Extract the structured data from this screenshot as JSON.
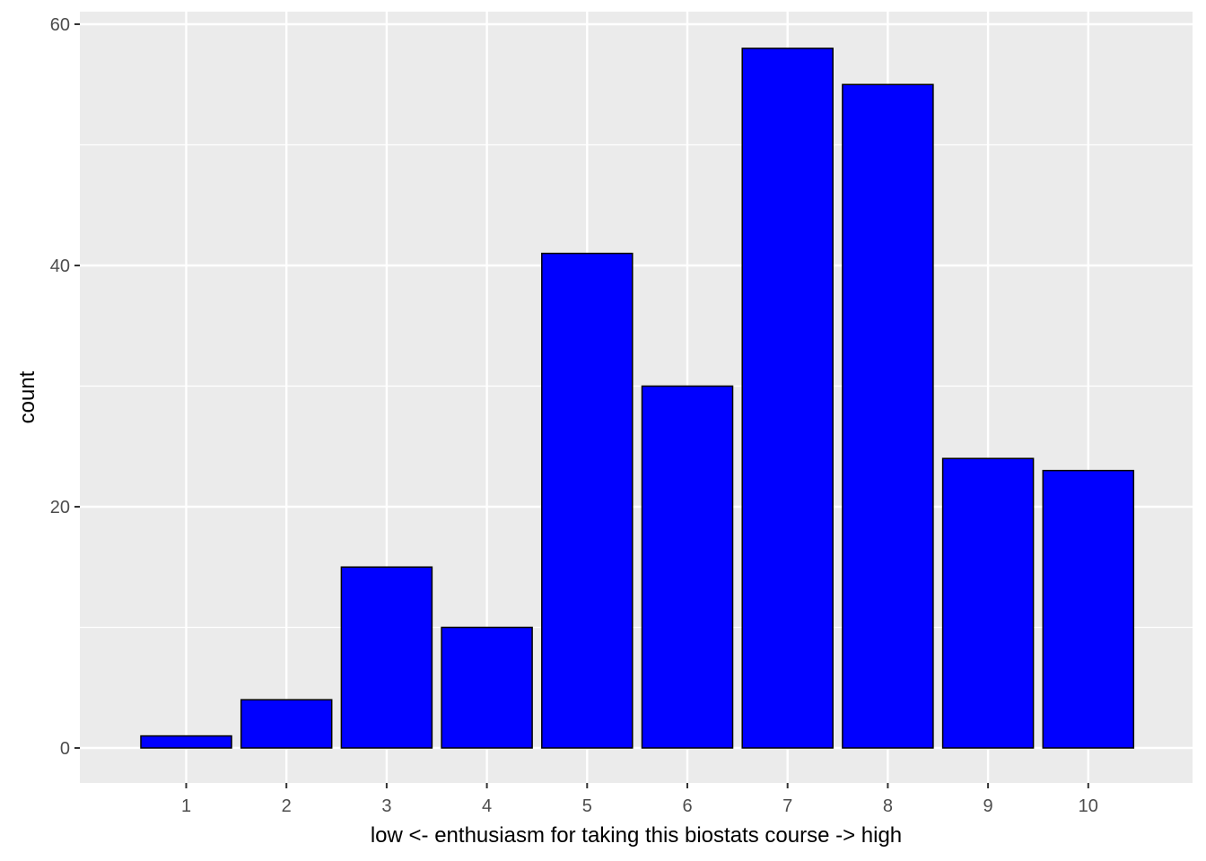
{
  "chart_data": {
    "type": "bar",
    "title": "",
    "xlabel": "low <- enthusiasm for taking this biostats course -> high",
    "ylabel": "count",
    "categories": [
      "1",
      "2",
      "3",
      "4",
      "5",
      "6",
      "7",
      "8",
      "9",
      "10"
    ],
    "values": [
      1,
      4,
      15,
      10,
      41,
      30,
      58,
      55,
      24,
      23
    ],
    "ylim": [
      0,
      60
    ],
    "yticks": [
      "0",
      "20",
      "40",
      "60"
    ],
    "grid": true,
    "legend": "none",
    "colors": {
      "bar_fill": "#0000ff",
      "bar_outline": "#000000",
      "panel_background": "#ebebeb",
      "grid_line": "#ffffff"
    }
  }
}
